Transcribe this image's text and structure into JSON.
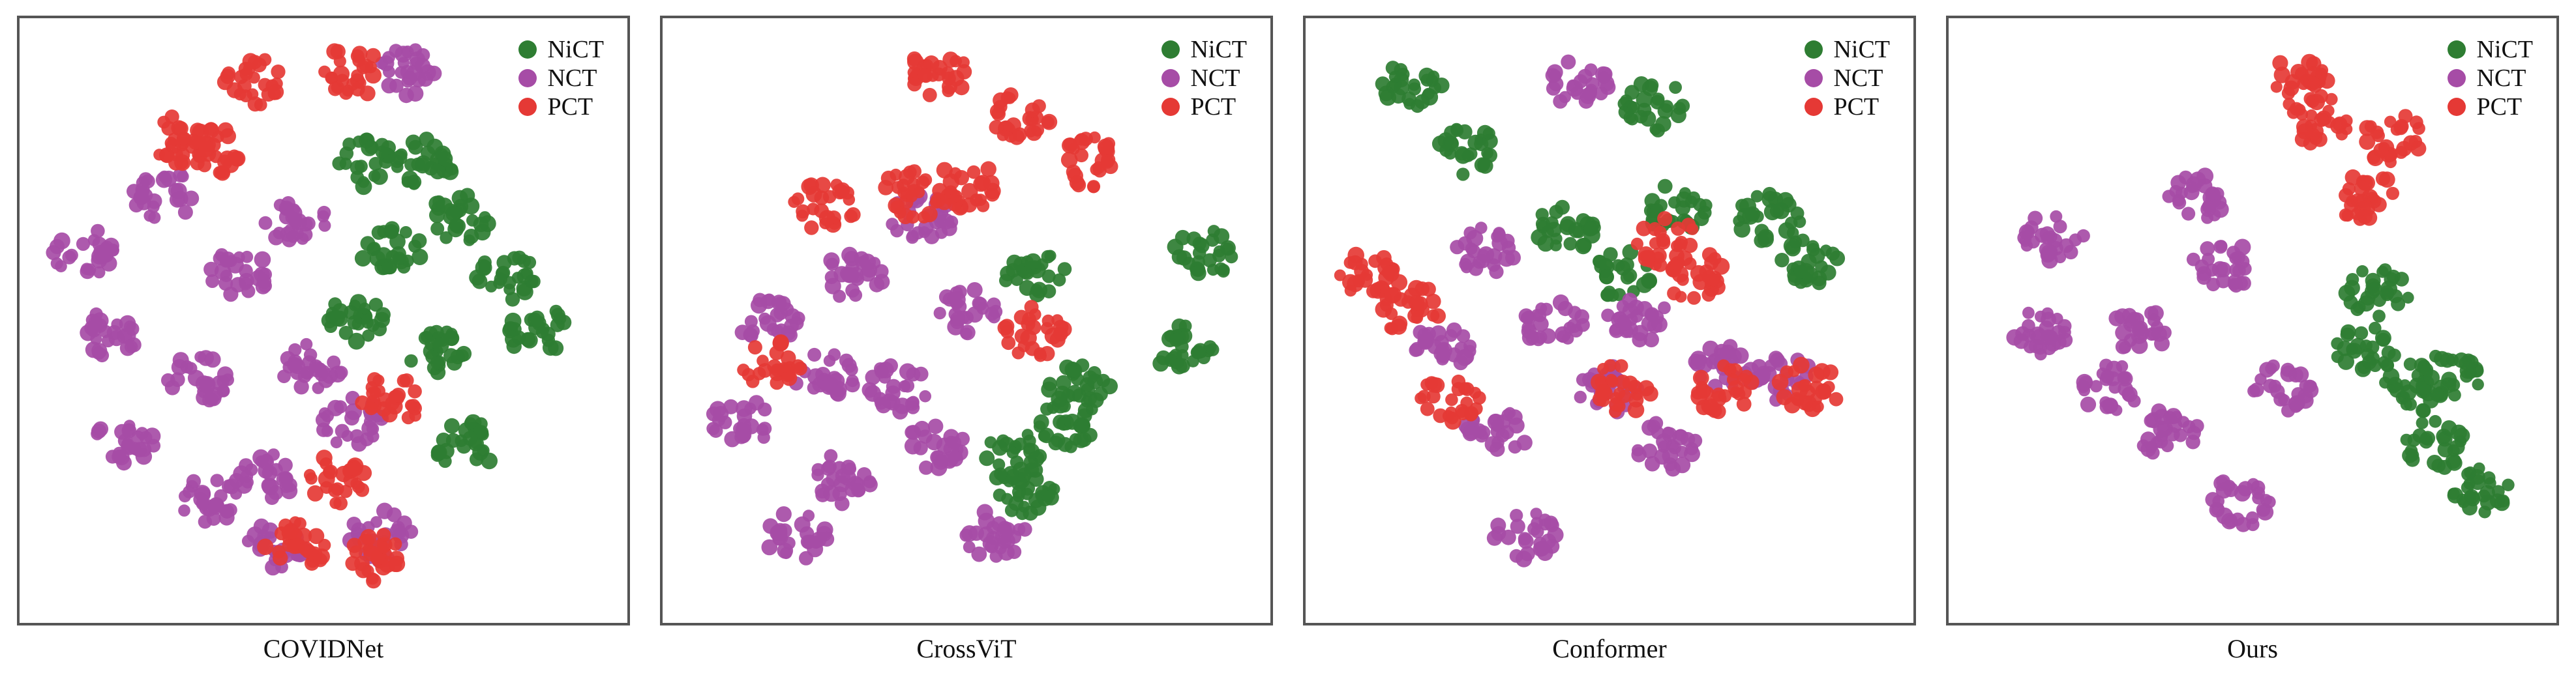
{
  "legend": {
    "items": [
      {
        "name": "NiCT",
        "color": "#2e7d32"
      },
      {
        "name": "NCT",
        "color": "#a64ca6"
      },
      {
        "name": "PCT",
        "color": "#e53935"
      }
    ]
  },
  "chart_data": [
    {
      "type": "scatter",
      "title": "COVIDNet",
      "xlabel": "",
      "ylabel": "",
      "series": [
        {
          "name": "NiCT",
          "points": [
            [
              0.68,
              0.22
            ],
            [
              0.62,
              0.38
            ],
            [
              0.74,
              0.32
            ],
            [
              0.56,
              0.5
            ],
            [
              0.82,
              0.42
            ],
            [
              0.88,
              0.52
            ],
            [
              0.75,
              0.72
            ],
            [
              0.58,
              0.22
            ],
            [
              0.7,
              0.55
            ]
          ]
        },
        {
          "name": "NCT",
          "points": [
            [
              0.22,
              0.28
            ],
            [
              0.12,
              0.52
            ],
            [
              0.35,
              0.42
            ],
            [
              0.28,
              0.6
            ],
            [
              0.15,
              0.72
            ],
            [
              0.4,
              0.78
            ],
            [
              0.55,
              0.68
            ],
            [
              0.45,
              0.32
            ],
            [
              0.6,
              0.88
            ],
            [
              0.48,
              0.58
            ],
            [
              0.08,
              0.38
            ],
            [
              0.3,
              0.82
            ],
            [
              0.65,
              0.06
            ],
            [
              0.42,
              0.9
            ]
          ]
        },
        {
          "name": "PCT",
          "points": [
            [
              0.38,
              0.08
            ],
            [
              0.55,
              0.06
            ],
            [
              0.25,
              0.18
            ],
            [
              0.52,
              0.78
            ],
            [
              0.45,
              0.9
            ],
            [
              0.62,
              0.64
            ],
            [
              0.3,
              0.2
            ],
            [
              0.6,
              0.92
            ]
          ]
        }
      ]
    },
    {
      "type": "scatter",
      "title": "CrossViT",
      "xlabel": "",
      "ylabel": "",
      "series": [
        {
          "name": "NiCT",
          "points": [
            [
              0.62,
              0.42
            ],
            [
              0.68,
              0.68
            ],
            [
              0.6,
              0.8
            ],
            [
              0.88,
              0.55
            ],
            [
              0.92,
              0.38
            ],
            [
              0.7,
              0.62
            ],
            [
              0.58,
              0.74
            ]
          ]
        },
        {
          "name": "NCT",
          "points": [
            [
              0.15,
              0.5
            ],
            [
              0.3,
              0.42
            ],
            [
              0.38,
              0.62
            ],
            [
              0.28,
              0.78
            ],
            [
              0.45,
              0.72
            ],
            [
              0.2,
              0.88
            ],
            [
              0.1,
              0.68
            ],
            [
              0.5,
              0.48
            ],
            [
              0.42,
              0.32
            ],
            [
              0.55,
              0.88
            ],
            [
              0.25,
              0.6
            ]
          ]
        },
        {
          "name": "PCT",
          "points": [
            [
              0.45,
              0.06
            ],
            [
              0.6,
              0.14
            ],
            [
              0.72,
              0.22
            ],
            [
              0.4,
              0.28
            ],
            [
              0.5,
              0.26
            ],
            [
              0.25,
              0.3
            ],
            [
              0.16,
              0.58
            ],
            [
              0.62,
              0.52
            ]
          ]
        }
      ]
    },
    {
      "type": "scatter",
      "title": "Conformer",
      "xlabel": "",
      "ylabel": "",
      "series": [
        {
          "name": "NiCT",
          "points": [
            [
              0.25,
              0.2
            ],
            [
              0.15,
              0.08
            ],
            [
              0.58,
              0.12
            ],
            [
              0.85,
              0.4
            ],
            [
              0.78,
              0.32
            ],
            [
              0.42,
              0.34
            ],
            [
              0.52,
              0.42
            ],
            [
              0.62,
              0.3
            ]
          ]
        },
        {
          "name": "NCT",
          "points": [
            [
              0.4,
              0.5
            ],
            [
              0.5,
              0.62
            ],
            [
              0.3,
              0.7
            ],
            [
              0.6,
              0.72
            ],
            [
              0.7,
              0.58
            ],
            [
              0.35,
              0.88
            ],
            [
              0.45,
              0.08
            ],
            [
              0.2,
              0.55
            ],
            [
              0.8,
              0.6
            ],
            [
              0.55,
              0.5
            ],
            [
              0.28,
              0.38
            ]
          ]
        },
        {
          "name": "PCT",
          "points": [
            [
              0.08,
              0.42
            ],
            [
              0.15,
              0.48
            ],
            [
              0.65,
              0.42
            ],
            [
              0.7,
              0.62
            ],
            [
              0.22,
              0.64
            ],
            [
              0.6,
              0.36
            ],
            [
              0.52,
              0.62
            ],
            [
              0.85,
              0.62
            ]
          ]
        }
      ]
    },
    {
      "type": "scatter",
      "title": "Ours",
      "xlabel": "",
      "ylabel": "",
      "series": [
        {
          "name": "NiCT",
          "points": [
            [
              0.7,
              0.55
            ],
            [
              0.82,
              0.72
            ],
            [
              0.78,
              0.62
            ],
            [
              0.9,
              0.8
            ],
            [
              0.72,
              0.45
            ],
            [
              0.85,
              0.6
            ]
          ]
        },
        {
          "name": "NCT",
          "points": [
            [
              0.15,
              0.35
            ],
            [
              0.3,
              0.52
            ],
            [
              0.45,
              0.4
            ],
            [
              0.35,
              0.7
            ],
            [
              0.48,
              0.82
            ],
            [
              0.25,
              0.62
            ],
            [
              0.4,
              0.28
            ],
            [
              0.55,
              0.62
            ],
            [
              0.12,
              0.52
            ]
          ]
        },
        {
          "name": "PCT",
          "points": [
            [
              0.62,
              0.15
            ],
            [
              0.75,
              0.18
            ],
            [
              0.7,
              0.28
            ],
            [
              0.58,
              0.08
            ]
          ]
        }
      ]
    }
  ]
}
